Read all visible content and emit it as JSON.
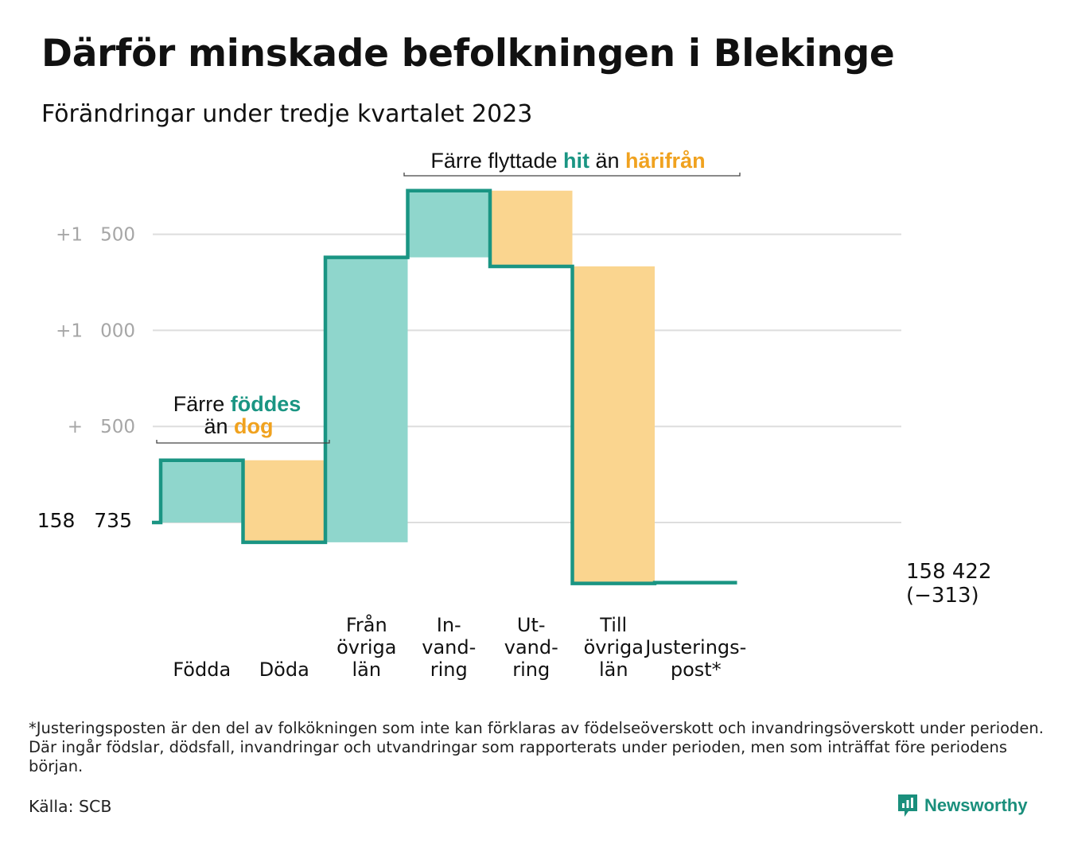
{
  "title": "Därför minskade befolkningen i Blekinge",
  "subtitle": "Förändringar under tredje kvartalet 2023",
  "footnote": "*Justeringsposten är den del av folkökningen som inte kan förklaras av födelseöverskott och invandringsöverskott under perioden. Där ingår födslar, dödsfall, invandringar och utvandringar som rapporterats under perioden, men som inträffat före periodens början.",
  "source": "Källa: SCB",
  "brand": "Newsworthy",
  "colors": {
    "increase": "#8fd6cc",
    "decrease": "#fad58f",
    "line": "#1a9583",
    "teal_text": "#1a9583",
    "orange_text": "#f0a21f",
    "grid": "#dddddd",
    "tick": "#a6a6a6"
  },
  "chart_data": {
    "type": "waterfall",
    "start_value": 158735,
    "start_label": "158 735",
    "end_value_label": "158 422",
    "end_change_label": "(−313)",
    "y_ticks": [
      {
        "offset": 500,
        "prefix": "+",
        "value": "500"
      },
      {
        "offset": 1000,
        "prefix": "+1",
        "value": "000"
      },
      {
        "offset": 1500,
        "prefix": "+1",
        "value": "500"
      }
    ],
    "ylim": [
      -350,
      1720
    ],
    "steps": [
      {
        "label": [
          "Födda"
        ],
        "change": 324
      },
      {
        "label": [
          "Döda"
        ],
        "change": -427
      },
      {
        "label": [
          "Från",
          "övriga",
          "län"
        ],
        "change": 1483
      },
      {
        "label": [
          "In-",
          "vand-",
          "ring"
        ],
        "change": 347
      },
      {
        "label": [
          "Ut-",
          "vand-",
          "ring"
        ],
        "change": -394
      },
      {
        "label": [
          "Till",
          "övriga",
          "län"
        ],
        "change": -1650
      },
      {
        "label": [
          "Justerings-",
          "post*"
        ],
        "change": 4
      }
    ],
    "annotations": [
      {
        "pre": "Färre ",
        "highlight1": "föddes",
        "mid": "än ",
        "highlight2": "dog"
      },
      {
        "pre": "Färre flyttade ",
        "highlight1": "hit",
        "mid": "än ",
        "highlight2": "härifrån"
      }
    ]
  }
}
